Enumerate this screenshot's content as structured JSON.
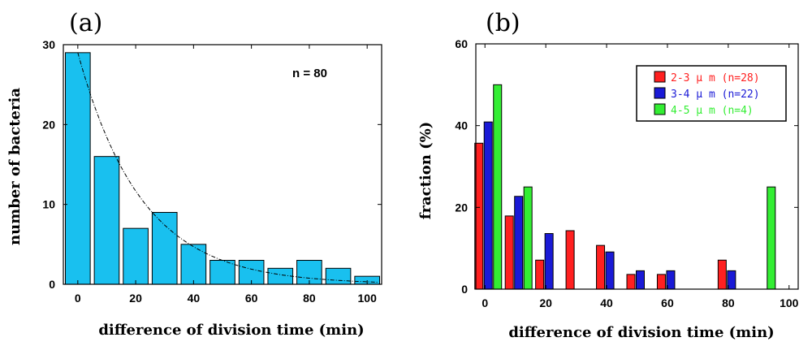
{
  "chart_data": [
    {
      "type": "bar",
      "panel_label": "(a)",
      "xlabel": "difference of division time (min)",
      "ylabel": "number of bacteria",
      "xlim": [
        -5,
        105
      ],
      "ylim": [
        0,
        30
      ],
      "xticks": [
        0,
        20,
        40,
        60,
        80,
        100
      ],
      "yticks": [
        0,
        10,
        20,
        30
      ],
      "bin_width": 10,
      "x": [
        0,
        10,
        20,
        30,
        40,
        50,
        60,
        70,
        80,
        90,
        100
      ],
      "values": [
        29,
        16,
        7,
        9,
        5,
        3,
        3,
        2,
        3,
        2,
        1
      ],
      "bar_color": "#19c0ef",
      "annotation": "n = 80",
      "fit_curve": {
        "type": "exponential",
        "a": 29,
        "tau": 22
      }
    },
    {
      "type": "bar",
      "panel_label": "(b)",
      "xlabel": "difference of division time (min)",
      "ylabel": "fraction (%)",
      "xlim": [
        -3,
        103
      ],
      "ylim": [
        0,
        60
      ],
      "xticks": [
        0,
        20,
        40,
        60,
        80,
        100
      ],
      "yticks": [
        0,
        20,
        40,
        60
      ],
      "groups": [
        0,
        10,
        20,
        30,
        40,
        50,
        60,
        70,
        80,
        90
      ],
      "series": [
        {
          "name": "2-3μm (n=28)",
          "color": "#ff2020",
          "values": [
            35.7,
            17.9,
            7.1,
            14.3,
            10.7,
            3.6,
            3.6,
            0,
            7.1,
            0
          ]
        },
        {
          "name": "3-4μm (n=22)",
          "color": "#1a1ad6",
          "values": [
            40.9,
            22.7,
            13.6,
            0,
            9.1,
            4.5,
            4.5,
            0,
            4.5,
            0
          ]
        },
        {
          "name": "4-5μm (n=4)",
          "color": "#33ee33",
          "values": [
            50,
            25,
            0,
            0,
            0,
            0,
            0,
            0,
            0,
            25
          ]
        }
      ],
      "legend": [
        "2-3 μ m (n=28)",
        "3-4 μ m (n=22)",
        "4-5 μ m (n=4)"
      ]
    }
  ]
}
